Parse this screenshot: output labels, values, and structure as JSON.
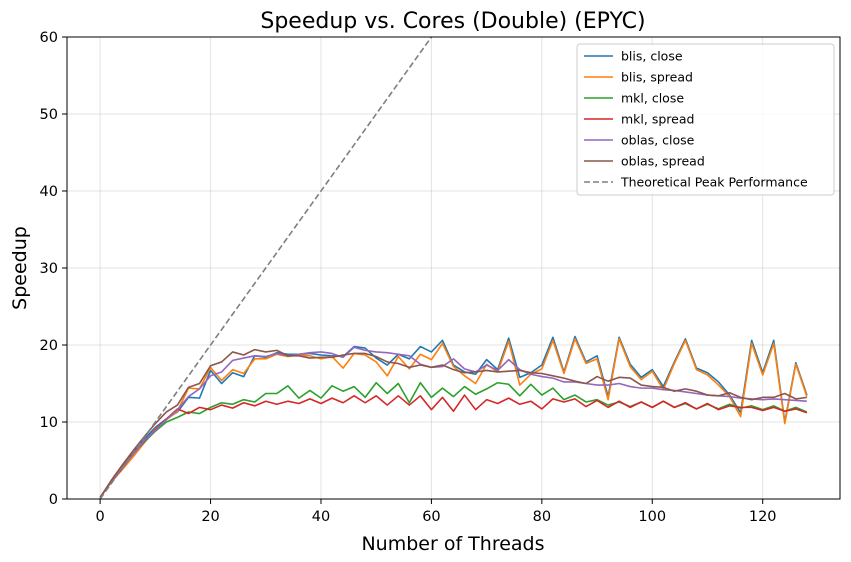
{
  "chart_data": {
    "type": "line",
    "title": "Speedup vs. Cores (Double) (EPYC)",
    "xlabel": "Number of Threads",
    "ylabel": "Speedup",
    "xlim": [
      -6,
      134
    ],
    "ylim": [
      0,
      60
    ],
    "xticks": [
      0,
      20,
      40,
      60,
      80,
      100,
      120
    ],
    "yticks": [
      0,
      10,
      20,
      30,
      40,
      50,
      60
    ],
    "grid": true,
    "legend_position": "top-right",
    "x": [
      0,
      2,
      4,
      6,
      8,
      10,
      12,
      14,
      16,
      18,
      20,
      22,
      24,
      26,
      28,
      30,
      32,
      34,
      36,
      38,
      40,
      42,
      44,
      46,
      48,
      50,
      52,
      54,
      56,
      58,
      60,
      62,
      64,
      66,
      68,
      70,
      72,
      74,
      76,
      78,
      80,
      82,
      84,
      86,
      88,
      90,
      92,
      94,
      96,
      98,
      100,
      102,
      104,
      106,
      108,
      110,
      112,
      114,
      116,
      118,
      120,
      122,
      124,
      126,
      128
    ],
    "series": [
      {
        "name": "blis, close",
        "color": "#1f77b4",
        "style": "solid",
        "values": [
          0.2,
          2.3,
          4.2,
          6,
          7.8,
          9.3,
          10.4,
          11.3,
          13.2,
          13.1,
          16.7,
          15,
          16.4,
          15.9,
          18.6,
          18.4,
          19,
          18.8,
          18.8,
          18.9,
          18.7,
          18.6,
          18.5,
          19.8,
          19.6,
          18.3,
          17.4,
          18.8,
          18.2,
          19.8,
          19.1,
          20.6,
          17.4,
          16.5,
          16.2,
          18.1,
          16.8,
          20.9,
          15.8,
          16.4,
          17.4,
          21,
          16.5,
          21.1,
          17.8,
          18.6,
          13.3,
          21,
          17.5,
          15.8,
          16.8,
          14.6,
          17.8,
          20.8,
          17,
          16.4,
          15.2,
          13.5,
          11.2,
          20.6,
          16.4,
          20.6,
          10,
          17.7,
          13.5
        ]
      },
      {
        "name": "blis, spread",
        "color": "#ff7f0e",
        "style": "solid",
        "values": [
          0.2,
          2.2,
          3.8,
          5.5,
          7.3,
          9.1,
          10.3,
          11.4,
          14.4,
          14.3,
          17.1,
          15.4,
          16.8,
          16.3,
          18.2,
          18.2,
          18.8,
          18.5,
          18.7,
          18.6,
          18.2,
          18.5,
          17,
          18.9,
          18.7,
          17.8,
          16,
          18.5,
          16.9,
          18.8,
          18.1,
          20.2,
          17.2,
          16,
          15,
          17.5,
          16.5,
          20.5,
          14.8,
          16.2,
          16.9,
          20.6,
          16.3,
          20.8,
          17.6,
          18.2,
          12.9,
          20.8,
          17.2,
          15.5,
          16.6,
          14.2,
          17.6,
          20.6,
          16.8,
          16.1,
          14.8,
          13.3,
          10.7,
          20.2,
          16.1,
          20.2,
          9.8,
          17.5,
          13.3
        ]
      },
      {
        "name": "mkl, close",
        "color": "#2ca02c",
        "style": "solid",
        "values": [
          0.2,
          2.2,
          4,
          5.9,
          7.4,
          8.8,
          10,
          10.6,
          11.3,
          11.1,
          11.9,
          12.5,
          12.3,
          12.9,
          12.6,
          13.7,
          13.7,
          14.7,
          13.1,
          14.1,
          13.1,
          14.7,
          14,
          14.6,
          13.2,
          15.1,
          13.7,
          15,
          12.5,
          15.1,
          13.2,
          14.4,
          13.3,
          14.6,
          13.6,
          14.3,
          15.1,
          14.9,
          13.4,
          14.9,
          13.5,
          14.4,
          12.9,
          13.5,
          12.6,
          12.9,
          12.2,
          12.6,
          12,
          12.6,
          11.9,
          12.7,
          11.9,
          12.4,
          11.7,
          12.3,
          11.7,
          12.3,
          11.8,
          12.1,
          11.6,
          12.1,
          11.4,
          11.9,
          11.3
        ]
      },
      {
        "name": "mkl, spread",
        "color": "#d62728",
        "style": "solid",
        "values": [
          0.2,
          2.2,
          4,
          5.9,
          7.5,
          9,
          10.4,
          11.7,
          11.1,
          11.9,
          11.6,
          12.2,
          11.8,
          12.5,
          12.1,
          12.7,
          12.3,
          12.7,
          12.4,
          13,
          12.4,
          13.1,
          12.5,
          13.4,
          12.5,
          13.4,
          12.2,
          13.4,
          12.2,
          13.4,
          11.6,
          13.2,
          11.4,
          13.5,
          11.6,
          12.9,
          12.4,
          13.1,
          12.3,
          12.7,
          11.7,
          13,
          12.6,
          13,
          12,
          12.8,
          11.9,
          12.7,
          11.9,
          12.6,
          11.9,
          12.7,
          11.9,
          12.5,
          11.7,
          12.4,
          11.6,
          12.1,
          11.9,
          11.9,
          11.5,
          11.9,
          11.4,
          11.7,
          11.2
        ]
      },
      {
        "name": "oblas, close",
        "color": "#9467bd",
        "style": "solid",
        "values": [
          0.2,
          2.3,
          4.1,
          5.8,
          7.6,
          8.9,
          10.3,
          11.6,
          13.3,
          14.3,
          16,
          16.5,
          18,
          18.3,
          18.6,
          18.5,
          18.9,
          18.6,
          18.8,
          19,
          19.1,
          18.9,
          18.4,
          19.7,
          19.3,
          19.1,
          19,
          18.8,
          18.6,
          17.5,
          17.1,
          17.2,
          18.2,
          16.9,
          16.5,
          17.4,
          16.7,
          18.1,
          16.8,
          16.2,
          15.9,
          15.7,
          15.2,
          15.2,
          15,
          14.8,
          14.8,
          15,
          14.6,
          14.4,
          14.4,
          14.2,
          14.1,
          13.9,
          13.7,
          13.5,
          13.4,
          13.3,
          13.1,
          13,
          12.9,
          13,
          12.9,
          12.8,
          12.7
        ]
      },
      {
        "name": "oblas, spread",
        "color": "#8c564b",
        "style": "solid",
        "values": [
          0.2,
          2.4,
          4.4,
          6.3,
          8.1,
          9.8,
          11.3,
          12.2,
          14.5,
          15,
          17.3,
          17.8,
          19.1,
          18.7,
          19.4,
          19.1,
          19.3,
          18.6,
          18.6,
          18.3,
          18.4,
          18.4,
          18.7,
          18.9,
          18.9,
          18.5,
          17.8,
          17.6,
          17.1,
          17.4,
          17.1,
          17.4,
          16.8,
          16.4,
          16.5,
          16.7,
          16.5,
          16.6,
          16.7,
          16.4,
          16.3,
          16,
          15.7,
          15.3,
          15,
          15.9,
          15.3,
          15.8,
          15.7,
          14.8,
          14.6,
          14.5,
          14,
          14.3,
          14,
          13.5,
          13.4,
          13.8,
          13.2,
          12.9,
          13.2,
          13.2,
          13.7,
          13,
          13.2
        ]
      },
      {
        "name": "Theoretical Peak Performance",
        "color": "#7f7f7f",
        "style": "dashed",
        "x": [
          0,
          61.5
        ],
        "values": [
          0,
          61.5
        ]
      }
    ]
  }
}
